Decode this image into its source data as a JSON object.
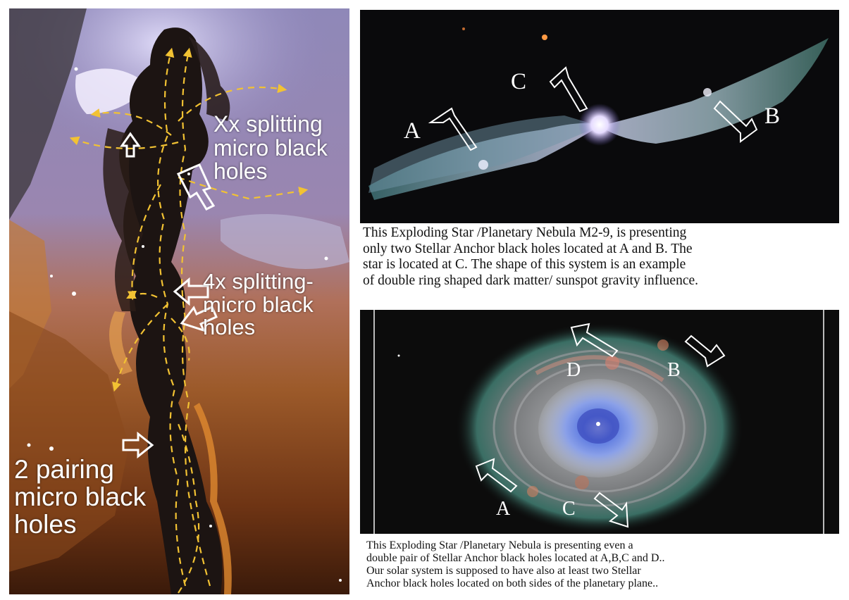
{
  "left_panel": {
    "labels": {
      "xx_splitting": "Xx splitting\nmicro black\nholes",
      "four_x_splitting": "4x splitting-\nmicro black\nholes",
      "pairing": "2 pairing\nmicro black\nholes"
    }
  },
  "top_right_panel": {
    "point_labels": {
      "a": "A",
      "b": "B",
      "c": "C"
    },
    "caption_lines": [
      "This Exploding Star /Planetary Nebula M2-9, is presenting",
      "only two Stellar Anchor black holes located at A and B. The",
      "star is located at C.  The shape of this system is an example",
      "of  double ring shaped dark matter/ sunspot gravity influence."
    ]
  },
  "bottom_right_panel": {
    "point_labels": {
      "a": "A",
      "b": "B",
      "c": "C",
      "d": "D"
    },
    "caption_lines": [
      "This Exploding Star /Planetary Nebula is presenting even a",
      "double pair of Stellar Anchor black holes located at A,B,C and D..",
      "Our solar system is supposed to have also at least two Stellar",
      "Anchor black holes located on both sides of the planetary plane.."
    ]
  }
}
